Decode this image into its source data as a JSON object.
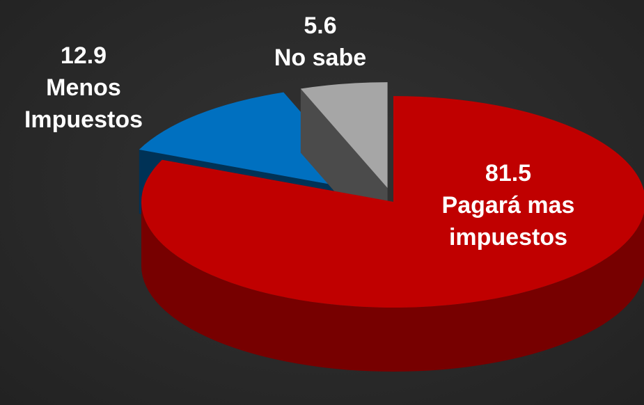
{
  "chart_data": {
    "type": "pie",
    "categories": [
      "Pagará mas impuestos",
      "Menos Impuestos",
      "No sabe"
    ],
    "values": [
      81.5,
      12.9,
      5.6
    ],
    "colors": [
      "#c00000",
      "#0070c0",
      "#a6a6a6"
    ]
  }
}
